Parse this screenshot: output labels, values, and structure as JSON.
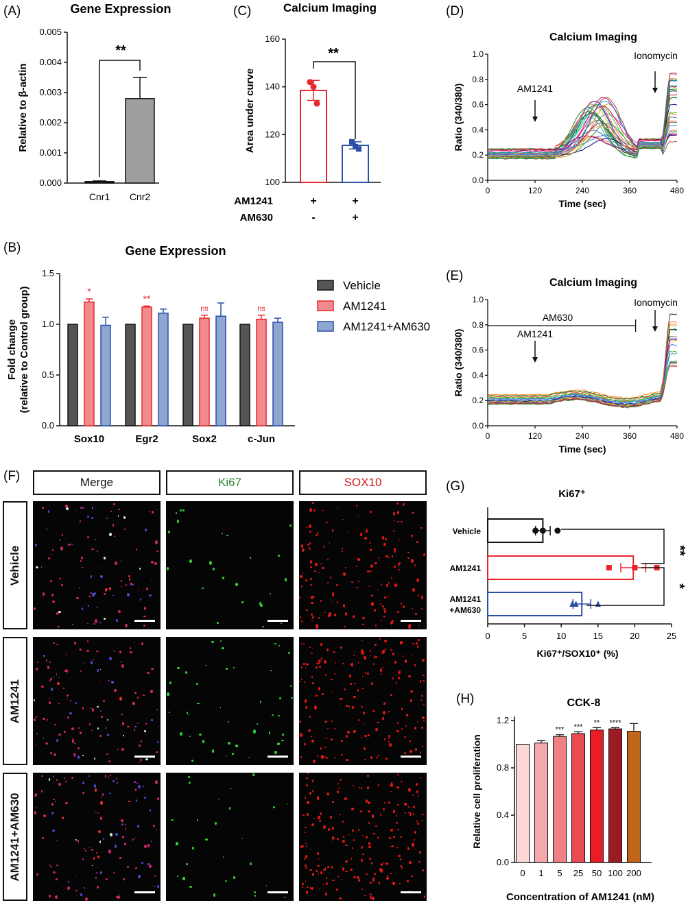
{
  "panels": {
    "A": {
      "letter": "(A)"
    },
    "B": {
      "letter": "(B)"
    },
    "C": {
      "letter": "(C)"
    },
    "D": {
      "letter": "(D)"
    },
    "E": {
      "letter": "(E)"
    },
    "F": {
      "letter": "(F)"
    },
    "G": {
      "letter": "(G)"
    },
    "H": {
      "letter": "(H)"
    }
  },
  "chart_data": [
    {
      "id": "A",
      "type": "bar",
      "title": "Gene Expression",
      "ylabel": "Relative to β-actin",
      "categories": [
        "Cnr1",
        "Cnr2"
      ],
      "values": [
        5e-05,
        0.0028
      ],
      "errors": [
        2e-05,
        0.0007
      ],
      "ylim": [
        0,
        0.005
      ],
      "yticks": [
        "0.000",
        "0.001",
        "0.002",
        "0.003",
        "0.004",
        "0.005"
      ],
      "colors": [
        "#222222",
        "#9e9e9e"
      ],
      "significance": "**"
    },
    {
      "id": "C",
      "type": "bar",
      "title": "Calcium Imaging",
      "ylabel": "Area under curve",
      "categories": [
        "AM1241+AM630-",
        "AM1241+AM630+"
      ],
      "values": [
        138.5,
        115.5
      ],
      "errors": [
        4.2,
        1.5
      ],
      "points": [
        [
          142,
          140,
          133
        ],
        [
          117,
          115,
          114
        ]
      ],
      "ylim": [
        100,
        160
      ],
      "yticks": [
        "100",
        "120",
        "140",
        "160"
      ],
      "colors": [
        "#e8262d",
        "#2b4fa5"
      ],
      "significance": "**",
      "condition_rows": [
        {
          "label": "AM1241",
          "values": [
            "+",
            "+"
          ]
        },
        {
          "label": "AM630",
          "values": [
            "-",
            "+"
          ]
        }
      ]
    },
    {
      "id": "B",
      "type": "bar",
      "title": "Gene Expression",
      "ylabel_line1": "Fold change",
      "ylabel_line2": "(relative to Control group)",
      "categories": [
        "Sox10",
        "Egr2",
        "Sox2",
        "c-Jun"
      ],
      "ylim": [
        0,
        1.5
      ],
      "yticks": [
        "0.0",
        "0.5",
        "1.0",
        "1.5"
      ],
      "series": [
        {
          "name": "Vehicle",
          "values": [
            1.0,
            1.0,
            1.0,
            1.0
          ],
          "errors": [
            0,
            0,
            0,
            0
          ],
          "color": "#555555",
          "edge": "#111111"
        },
        {
          "name": "AM1241",
          "values": [
            1.22,
            1.17,
            1.06,
            1.05
          ],
          "errors": [
            0.03,
            0.01,
            0.03,
            0.04
          ],
          "color": "#f28b8e",
          "edge": "#e8262d"
        },
        {
          "name": "AM1241+AM630",
          "values": [
            0.99,
            1.11,
            1.08,
            1.02
          ],
          "errors": [
            0.08,
            0.04,
            0.13,
            0.04
          ],
          "color": "#8fa6d1",
          "edge": "#2b4fa5"
        }
      ],
      "annotations": [
        "*",
        "**",
        "ns",
        "ns"
      ]
    },
    {
      "id": "D",
      "type": "line",
      "title": "Calcium Imaging",
      "xlabel": "Time (sec)",
      "ylabel": "Ratio (340/380)",
      "xlim": [
        0,
        480
      ],
      "ylim": [
        0,
        1.0
      ],
      "xticks": [
        "0",
        "120",
        "240",
        "360",
        "480"
      ],
      "yticks": [
        "0.0",
        "0.2",
        "0.4",
        "0.6",
        "0.8",
        "1.0"
      ],
      "markers": [
        {
          "label": "AM1241",
          "x": 120
        },
        {
          "label": "Ionomycin",
          "x": 430
        }
      ],
      "n_traces": 28,
      "peak_range": [
        0.3,
        0.66
      ],
      "final_range": [
        0.3,
        0.85
      ]
    },
    {
      "id": "E",
      "type": "line",
      "title": "Calcium Imaging",
      "xlabel": "Time (sec)",
      "ylabel": "Ratio (340/380)",
      "xlim": [
        0,
        480
      ],
      "ylim": [
        0,
        1.0
      ],
      "xticks": [
        "0",
        "120",
        "240",
        "360",
        "480"
      ],
      "yticks": [
        "0.0",
        "0.2",
        "0.4",
        "0.6",
        "0.8",
        "1.0"
      ],
      "markers": [
        {
          "label": "AM1241",
          "x": 120
        },
        {
          "label": "Ionomycin",
          "x": 430
        }
      ],
      "bar_annotation": {
        "label": "AM630",
        "from": 0,
        "to": 375
      },
      "n_traces": 20,
      "peak_range": [
        0.2,
        0.25
      ],
      "final_range": [
        0.45,
        0.9
      ]
    },
    {
      "id": "G",
      "type": "bar",
      "orientation": "horizontal",
      "title": "Ki67⁺",
      "xlabel": "Ki67⁺/SOX10⁺ (%)",
      "categories": [
        "Vehicle",
        "AM1241",
        "AM1241+AM630"
      ],
      "category_lines": [
        [
          "Vehicle"
        ],
        [
          "AM1241"
        ],
        [
          "AM1241",
          "+AM630"
        ]
      ],
      "values": [
        7.5,
        19.8,
        12.8
      ],
      "errors": [
        1.0,
        1.7,
        1.2
      ],
      "points": [
        [
          6.5,
          7.5,
          9.5
        ],
        [
          16.5,
          20.0,
          23.0
        ],
        [
          11.5,
          12.0,
          15.0
        ]
      ],
      "xlim": [
        0,
        25
      ],
      "xticks": [
        "0",
        "5",
        "10",
        "15",
        "20",
        "25"
      ],
      "colors": [
        "#111111",
        "#e8262d",
        "#2b4fa5"
      ],
      "significance": [
        "**",
        "*"
      ]
    },
    {
      "id": "H",
      "type": "bar",
      "title": "CCK-8",
      "xlabel": "Concentration of AM1241 (nM)",
      "ylabel": "Relative cell proliferation",
      "categories": [
        "0",
        "1",
        "5",
        "25",
        "50",
        "100",
        "200"
      ],
      "values": [
        1.0,
        1.01,
        1.065,
        1.09,
        1.12,
        1.13,
        1.11
      ],
      "errors": [
        0.0,
        0.02,
        0.015,
        0.015,
        0.02,
        0.01,
        0.065
      ],
      "significance": [
        "",
        "",
        "***",
        "***",
        "**",
        "****",
        ""
      ],
      "ylim": [
        0,
        1.2
      ],
      "yticks": [
        "0.0",
        "0.4",
        "0.8",
        "1.2"
      ],
      "colors": [
        "#fbd7d7",
        "#f5a9ab",
        "#f08083",
        "#e84c52",
        "#e81e26",
        "#9c1a22",
        "#c0651c"
      ]
    }
  ],
  "microscopy": {
    "column_headers": [
      {
        "label": "Merge",
        "color": "#111111"
      },
      {
        "label": "Ki67",
        "color": "#2e8b2e"
      },
      {
        "label": "SOX10",
        "color": "#d01c1c"
      }
    ],
    "row_headers": [
      "Vehicle",
      "AM1241",
      "AM1241+AM630"
    ]
  }
}
